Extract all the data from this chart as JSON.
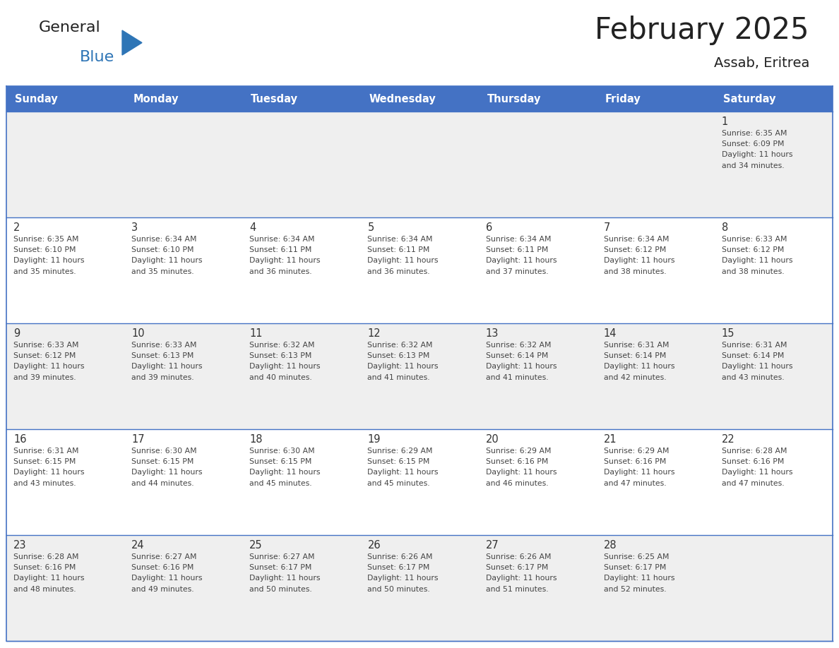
{
  "title": "February 2025",
  "subtitle": "Assab, Eritrea",
  "days_of_week": [
    "Sunday",
    "Monday",
    "Tuesday",
    "Wednesday",
    "Thursday",
    "Friday",
    "Saturday"
  ],
  "header_bg": "#4472C4",
  "header_text_color": "#FFFFFF",
  "cell_bg_light": "#EFEFEF",
  "cell_bg_white": "#FFFFFF",
  "border_color": "#4472C4",
  "day_num_color": "#333333",
  "text_color": "#444444",
  "title_color": "#222222",
  "logo_general_color": "#222222",
  "logo_blue_color": "#2E75B6",
  "logo_triangle_color": "#2E75B6",
  "calendar_data": [
    [
      null,
      null,
      null,
      null,
      null,
      null,
      {
        "day": 1,
        "sunrise": "6:35 AM",
        "sunset": "6:09 PM",
        "daylight": "11 hours and 34 minutes."
      }
    ],
    [
      {
        "day": 2,
        "sunrise": "6:35 AM",
        "sunset": "6:10 PM",
        "daylight": "11 hours and 35 minutes."
      },
      {
        "day": 3,
        "sunrise": "6:34 AM",
        "sunset": "6:10 PM",
        "daylight": "11 hours and 35 minutes."
      },
      {
        "day": 4,
        "sunrise": "6:34 AM",
        "sunset": "6:11 PM",
        "daylight": "11 hours and 36 minutes."
      },
      {
        "day": 5,
        "sunrise": "6:34 AM",
        "sunset": "6:11 PM",
        "daylight": "11 hours and 36 minutes."
      },
      {
        "day": 6,
        "sunrise": "6:34 AM",
        "sunset": "6:11 PM",
        "daylight": "11 hours and 37 minutes."
      },
      {
        "day": 7,
        "sunrise": "6:34 AM",
        "sunset": "6:12 PM",
        "daylight": "11 hours and 38 minutes."
      },
      {
        "day": 8,
        "sunrise": "6:33 AM",
        "sunset": "6:12 PM",
        "daylight": "11 hours and 38 minutes."
      }
    ],
    [
      {
        "day": 9,
        "sunrise": "6:33 AM",
        "sunset": "6:12 PM",
        "daylight": "11 hours and 39 minutes."
      },
      {
        "day": 10,
        "sunrise": "6:33 AM",
        "sunset": "6:13 PM",
        "daylight": "11 hours and 39 minutes."
      },
      {
        "day": 11,
        "sunrise": "6:32 AM",
        "sunset": "6:13 PM",
        "daylight": "11 hours and 40 minutes."
      },
      {
        "day": 12,
        "sunrise": "6:32 AM",
        "sunset": "6:13 PM",
        "daylight": "11 hours and 41 minutes."
      },
      {
        "day": 13,
        "sunrise": "6:32 AM",
        "sunset": "6:14 PM",
        "daylight": "11 hours and 41 minutes."
      },
      {
        "day": 14,
        "sunrise": "6:31 AM",
        "sunset": "6:14 PM",
        "daylight": "11 hours and 42 minutes."
      },
      {
        "day": 15,
        "sunrise": "6:31 AM",
        "sunset": "6:14 PM",
        "daylight": "11 hours and 43 minutes."
      }
    ],
    [
      {
        "day": 16,
        "sunrise": "6:31 AM",
        "sunset": "6:15 PM",
        "daylight": "11 hours and 43 minutes."
      },
      {
        "day": 17,
        "sunrise": "6:30 AM",
        "sunset": "6:15 PM",
        "daylight": "11 hours and 44 minutes."
      },
      {
        "day": 18,
        "sunrise": "6:30 AM",
        "sunset": "6:15 PM",
        "daylight": "11 hours and 45 minutes."
      },
      {
        "day": 19,
        "sunrise": "6:29 AM",
        "sunset": "6:15 PM",
        "daylight": "11 hours and 45 minutes."
      },
      {
        "day": 20,
        "sunrise": "6:29 AM",
        "sunset": "6:16 PM",
        "daylight": "11 hours and 46 minutes."
      },
      {
        "day": 21,
        "sunrise": "6:29 AM",
        "sunset": "6:16 PM",
        "daylight": "11 hours and 47 minutes."
      },
      {
        "day": 22,
        "sunrise": "6:28 AM",
        "sunset": "6:16 PM",
        "daylight": "11 hours and 47 minutes."
      }
    ],
    [
      {
        "day": 23,
        "sunrise": "6:28 AM",
        "sunset": "6:16 PM",
        "daylight": "11 hours and 48 minutes."
      },
      {
        "day": 24,
        "sunrise": "6:27 AM",
        "sunset": "6:16 PM",
        "daylight": "11 hours and 49 minutes."
      },
      {
        "day": 25,
        "sunrise": "6:27 AM",
        "sunset": "6:17 PM",
        "daylight": "11 hours and 50 minutes."
      },
      {
        "day": 26,
        "sunrise": "6:26 AM",
        "sunset": "6:17 PM",
        "daylight": "11 hours and 50 minutes."
      },
      {
        "day": 27,
        "sunrise": "6:26 AM",
        "sunset": "6:17 PM",
        "daylight": "11 hours and 51 minutes."
      },
      {
        "day": 28,
        "sunrise": "6:25 AM",
        "sunset": "6:17 PM",
        "daylight": "11 hours and 52 minutes."
      },
      null
    ]
  ]
}
